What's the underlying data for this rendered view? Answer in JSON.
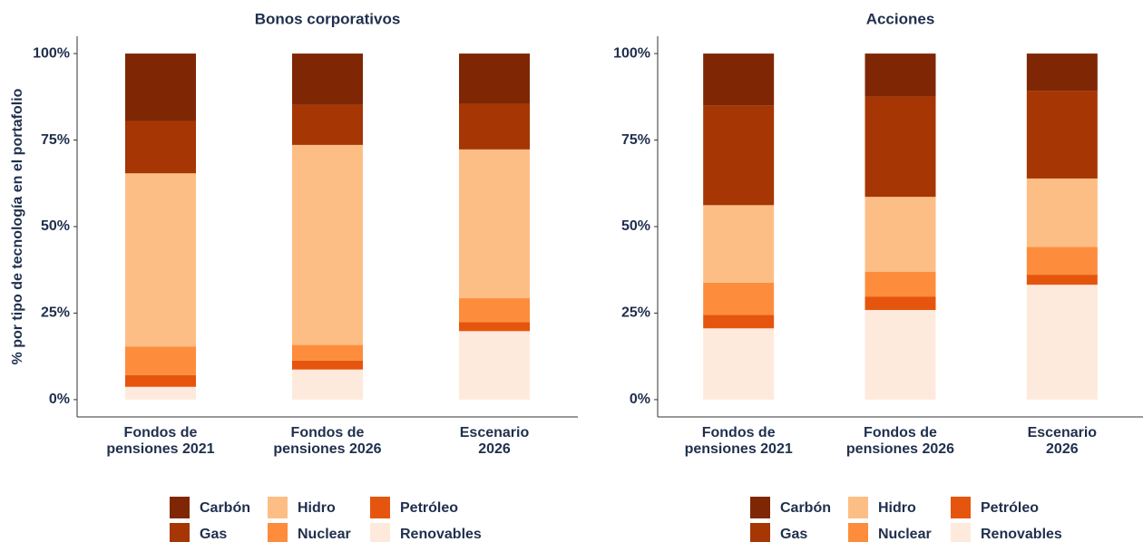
{
  "chart_data": [
    {
      "type": "stacked_bar",
      "title": "Bonos corporativos",
      "y_label": "% por tipo de tecnología en el portafolio",
      "categories": [
        "Fondos de\npensiones 2021",
        "Fondos de\npensiones 2026",
        "Escenario\n2026"
      ],
      "series": [
        {
          "name": "Carbón",
          "color": "#7f2704",
          "values": [
            19.5,
            14.8,
            14.5
          ]
        },
        {
          "name": "Gas",
          "color": "#a63603",
          "values": [
            15.1,
            11.6,
            13.2
          ]
        },
        {
          "name": "Hidro",
          "color": "#fdbe85",
          "values": [
            50.1,
            57.8,
            43
          ]
        },
        {
          "name": "Nuclear",
          "color": "#fd8d3c",
          "values": [
            8.2,
            4.5,
            6.9
          ]
        },
        {
          "name": "Petróleo",
          "color": "#e6550d",
          "values": [
            3.4,
            2.6,
            2.6
          ]
        },
        {
          "name": "Renovables",
          "color": "#feeadc",
          "values": [
            3.7,
            8.7,
            19.8
          ]
        }
      ],
      "ylim": [
        -5,
        105
      ],
      "yticks": [
        {
          "value": 0,
          "label": "0%"
        },
        {
          "value": 25,
          "label": "25%"
        },
        {
          "value": 50,
          "label": "50%"
        },
        {
          "value": 75,
          "label": "75%"
        },
        {
          "value": 100,
          "label": "100%"
        }
      ]
    },
    {
      "type": "stacked_bar",
      "title": "Acciones",
      "categories": [
        "Fondos de\npensiones 2021",
        "Fondos de\npensiones 2026",
        "Escenario\n2026"
      ],
      "series": [
        {
          "name": "Carbón",
          "color": "#7f2704",
          "values": [
            15,
            12.4,
            10.8
          ]
        },
        {
          "name": "Gas",
          "color": "#a63603",
          "values": [
            28.8,
            29,
            25.3
          ]
        },
        {
          "name": "Hidro",
          "color": "#fdbe85",
          "values": [
            22.4,
            21.7,
            19.8
          ]
        },
        {
          "name": "Nuclear",
          "color": "#fd8d3c",
          "values": [
            9.3,
            7.1,
            8
          ]
        },
        {
          "name": "Petróleo",
          "color": "#e6550d",
          "values": [
            3.9,
            3.9,
            2.9
          ]
        },
        {
          "name": "Renovables",
          "color": "#feeadc",
          "values": [
            20.6,
            25.9,
            33.2
          ]
        }
      ],
      "ylim": [
        -5,
        105
      ],
      "yticks": [
        {
          "value": 0,
          "label": "0%"
        },
        {
          "value": 25,
          "label": "25%"
        },
        {
          "value": 50,
          "label": "50%"
        },
        {
          "value": 75,
          "label": "75%"
        },
        {
          "value": 100,
          "label": "100%"
        }
      ]
    }
  ]
}
